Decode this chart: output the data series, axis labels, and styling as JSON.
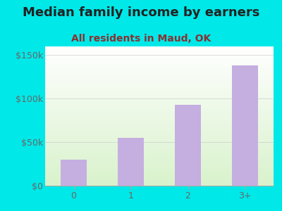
{
  "title": "Median family income by earners",
  "subtitle": "All residents in Maud, OK",
  "categories": [
    "0",
    "1",
    "2",
    "3+"
  ],
  "values": [
    30000,
    55000,
    93000,
    138000
  ],
  "bar_color": "#c5aee0",
  "background_color": "#00e8e8",
  "title_color": "#222222",
  "subtitle_color": "#8b3030",
  "tick_color": "#666666",
  "ylim": [
    0,
    160000
  ],
  "yticks": [
    0,
    50000,
    100000,
    150000
  ],
  "ytick_labels": [
    "$0",
    "$50k",
    "$100k",
    "$150k"
  ],
  "title_fontsize": 13,
  "subtitle_fontsize": 10,
  "tick_fontsize": 9
}
